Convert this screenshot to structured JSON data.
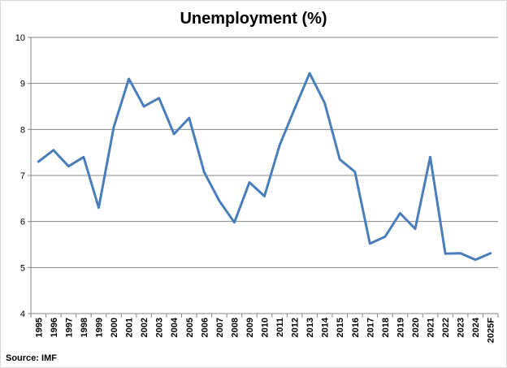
{
  "chart_data": {
    "type": "line",
    "title": "Unemployment (%)",
    "xlabel": "",
    "ylabel": "",
    "ylim": [
      4,
      10
    ],
    "yticks": [
      4,
      5,
      6,
      7,
      8,
      9,
      10
    ],
    "grid": true,
    "legend": "none",
    "source": "Source: IMF",
    "line_color": "#4a7ebb",
    "categories": [
      "1995",
      "1996",
      "1997",
      "1998",
      "1999",
      "2000",
      "2001",
      "2002",
      "2003",
      "2004",
      "2005",
      "2006",
      "2007",
      "2008",
      "2009",
      "2010",
      "2011",
      "2012",
      "2013",
      "2014",
      "2015",
      "2016",
      "2017",
      "2018",
      "2019",
      "2020",
      "2021",
      "2022",
      "2023",
      "2024",
      "2025F"
    ],
    "values": [
      7.3,
      7.55,
      7.2,
      7.4,
      6.3,
      8.05,
      9.1,
      8.5,
      8.68,
      7.9,
      8.25,
      7.07,
      6.45,
      5.98,
      6.85,
      6.55,
      7.65,
      8.45,
      9.22,
      8.57,
      7.35,
      7.08,
      5.52,
      5.67,
      6.18,
      5.84,
      7.4,
      5.3,
      5.31,
      5.17,
      5.31
    ]
  }
}
